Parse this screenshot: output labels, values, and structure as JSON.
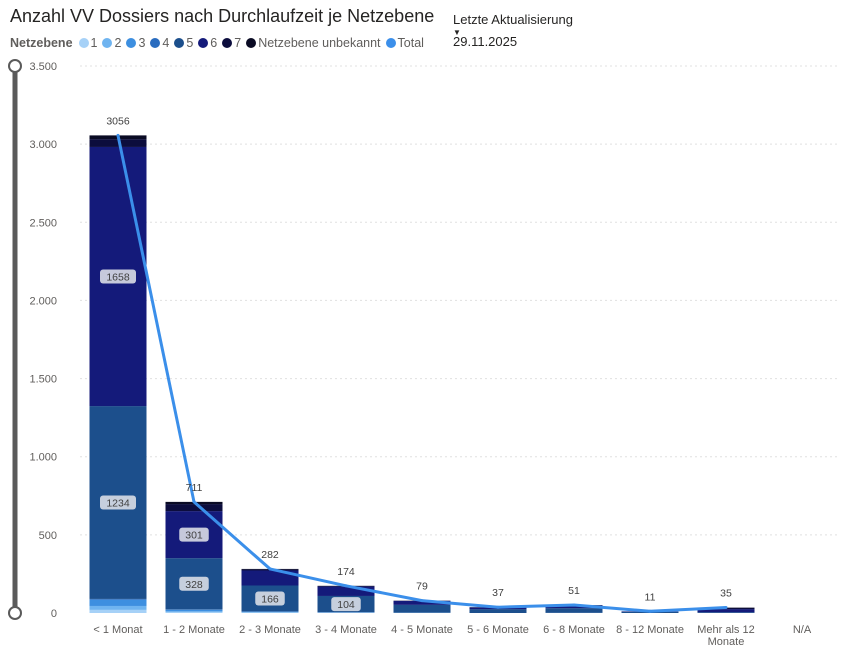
{
  "header": {
    "title": "Anzahl VV Dossiers nach Durchlaufzeit je Netzebene",
    "update_label": "Letzte Aktualisierung",
    "update_date": "29.11.2025"
  },
  "legend": {
    "title": "Netzebene",
    "items": [
      {
        "label": "1",
        "color": "#a6d1f7"
      },
      {
        "label": "2",
        "color": "#6fb4f0"
      },
      {
        "label": "3",
        "color": "#3d8fe0"
      },
      {
        "label": "4",
        "color": "#2a6cbf"
      },
      {
        "label": "5",
        "color": "#1c4f8c"
      },
      {
        "label": "6",
        "color": "#141a7a"
      },
      {
        "label": "7",
        "color": "#0c0d3d"
      },
      {
        "label": "Netzebene unbekannt",
        "color": "#0a0b24"
      },
      {
        "label": "Total",
        "color": "#3b8fea"
      }
    ]
  },
  "chart_data": {
    "type": "bar",
    "stacked": true,
    "title": "Anzahl VV Dossiers nach Durchlaufzeit je Netzebene",
    "categories": [
      "< 1 Monat",
      "1 - 2 Monate",
      "2 - 3 Monate",
      "3 - 4 Monate",
      "4 - 5 Monate",
      "5 - 6 Monate",
      "6 - 8 Monate",
      "8 - 12 Monate",
      "Mehr als 12 Monate",
      "N/A"
    ],
    "ylim": [
      0,
      3500
    ],
    "yticks": [
      0,
      500,
      1000,
      1500,
      2000,
      2500,
      3000,
      3500
    ],
    "ytick_labels": [
      "0",
      "500",
      "1.000",
      "1.500",
      "2.000",
      "2.500",
      "3.000",
      "3.500"
    ],
    "grid": true,
    "series": [
      {
        "name": "1",
        "color": "#a6d1f7",
        "values": [
          20,
          5,
          2,
          1,
          0,
          0,
          0,
          0,
          0,
          0
        ]
      },
      {
        "name": "2",
        "color": "#6fb4f0",
        "values": [
          25,
          6,
          3,
          1,
          1,
          0,
          0,
          0,
          0,
          0
        ]
      },
      {
        "name": "3",
        "color": "#3d8fe0",
        "values": [
          40,
          10,
          4,
          2,
          1,
          0,
          1,
          0,
          0,
          0
        ]
      },
      {
        "name": "4",
        "color": "#2a6cbf",
        "values": [
          5,
          2,
          1,
          1,
          0,
          0,
          0,
          0,
          0,
          0
        ]
      },
      {
        "name": "5",
        "color": "#1c4f8c",
        "values": [
          1234,
          328,
          166,
          104,
          50,
          25,
          30,
          8,
          5,
          0
        ]
      },
      {
        "name": "6",
        "color": "#141a7a",
        "values": [
          1658,
          301,
          96,
          60,
          25,
          10,
          18,
          3,
          20,
          0
        ]
      },
      {
        "name": "7",
        "color": "#0c0d3d",
        "values": [
          50,
          45,
          7,
          4,
          2,
          2,
          2,
          0,
          8,
          0
        ]
      },
      {
        "name": "Netzebene unbekannt",
        "color": "#0a0b24",
        "values": [
          24,
          14,
          3,
          1,
          0,
          0,
          0,
          0,
          2,
          0
        ]
      }
    ],
    "total": {
      "name": "Total",
      "color": "#3b8fea",
      "values": [
        3056,
        711,
        282,
        174,
        79,
        37,
        51,
        11,
        35,
        null
      ]
    },
    "inner_labels": [
      {
        "category": 0,
        "series": "6",
        "value": "1658"
      },
      {
        "category": 0,
        "series": "5",
        "value": "1234"
      },
      {
        "category": 1,
        "series": "6",
        "value": "301"
      },
      {
        "category": 1,
        "series": "5",
        "value": "328"
      },
      {
        "category": 2,
        "series": "5",
        "value": "166"
      },
      {
        "category": 3,
        "series": "5",
        "value": "104"
      }
    ],
    "total_labels": [
      "3056",
      "711",
      "282",
      "174",
      "79",
      "37",
      "51",
      "11",
      "35",
      ""
    ]
  }
}
